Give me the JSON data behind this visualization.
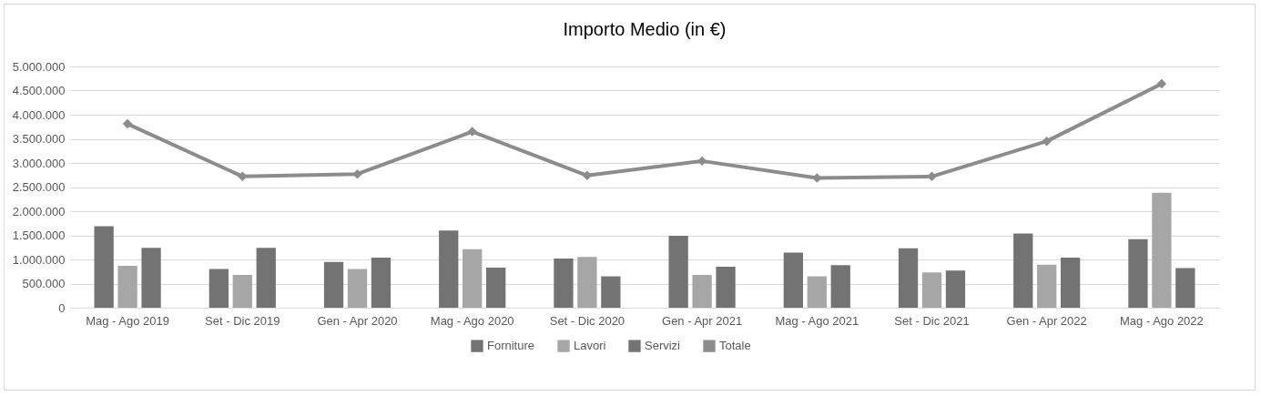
{
  "chart_data": {
    "type": "bar",
    "title": "Importo Medio (in €)",
    "categories": [
      "Mag - Ago 2019",
      "Set - Dic 2019",
      "Gen - Apr 2020",
      "Mag - Ago 2020",
      "Set - Dic 2020",
      "Gen - Apr 2021",
      "Mag - Ago 2021",
      "Set - Dic 2021",
      "Gen - Apr 2022",
      "Mag - Ago 2022"
    ],
    "series": [
      {
        "name": "Forniture",
        "color": "#737373",
        "values": [
          1690000,
          800000,
          950000,
          1600000,
          1020000,
          1490000,
          1140000,
          1230000,
          1540000,
          1420000
        ]
      },
      {
        "name": "Lavori",
        "color": "#a6a6a6",
        "values": [
          870000,
          680000,
          800000,
          1210000,
          1050000,
          680000,
          650000,
          730000,
          890000,
          2380000
        ]
      },
      {
        "name": "Servizi",
        "color": "#737373",
        "values": [
          1240000,
          1240000,
          1040000,
          830000,
          650000,
          850000,
          880000,
          770000,
          1040000,
          820000
        ]
      },
      {
        "name": "Totale",
        "type": "line",
        "color": "#8c8c8c",
        "marker": "diamond",
        "values": [
          3810000,
          2720000,
          2770000,
          3650000,
          2740000,
          3040000,
          2690000,
          2720000,
          3450000,
          4640000
        ]
      }
    ],
    "ylim": [
      0,
      5000000
    ],
    "yticks": [
      {
        "value": 0,
        "label": "0"
      },
      {
        "value": 500000,
        "label": "500.000"
      },
      {
        "value": 1000000,
        "label": "1.000.000"
      },
      {
        "value": 1500000,
        "label": "1.500.000"
      },
      {
        "value": 2000000,
        "label": "2.000.000"
      },
      {
        "value": 2500000,
        "label": "2.500.000"
      },
      {
        "value": 3000000,
        "label": "3.000.000"
      },
      {
        "value": 3500000,
        "label": "3.500.000"
      },
      {
        "value": 4000000,
        "label": "4.000.000"
      },
      {
        "value": 4500000,
        "label": "4.500.000"
      },
      {
        "value": 5000000,
        "label": "5.000.000"
      }
    ],
    "grid": "y",
    "legend": "bottom"
  }
}
